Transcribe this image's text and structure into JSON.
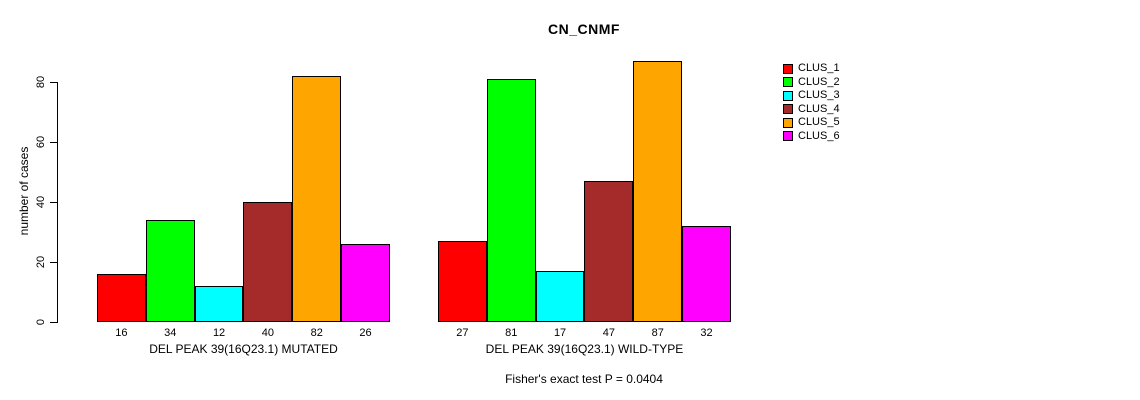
{
  "title": "CN_CNMF",
  "chart_data": {
    "type": "bar",
    "title": "CN_CNMF",
    "xlabel": "",
    "ylabel": "number of cases",
    "ylim": [
      0,
      88
    ],
    "yticks": [
      0,
      20,
      40,
      60,
      80
    ],
    "grid": false,
    "legend_position": "top-right",
    "legend": [
      {
        "name": "CLUS_1",
        "color": "#FF0000"
      },
      {
        "name": "CLUS_2",
        "color": "#00FF00"
      },
      {
        "name": "CLUS_3",
        "color": "#00FFFF"
      },
      {
        "name": "CLUS_4",
        "color": "#A52A2A"
      },
      {
        "name": "CLUS_5",
        "color": "#FFA500"
      },
      {
        "name": "CLUS_6",
        "color": "#FF00FF"
      }
    ],
    "groups": [
      {
        "label": "DEL PEAK 39(16Q23.1) MUTATED",
        "values": [
          16,
          34,
          12,
          40,
          82,
          26
        ]
      },
      {
        "label": "DEL PEAK 39(16Q23.1) WILD-TYPE",
        "values": [
          27,
          81,
          17,
          47,
          87,
          32
        ]
      }
    ],
    "footnote": "Fisher's exact test P = 0.0404"
  }
}
